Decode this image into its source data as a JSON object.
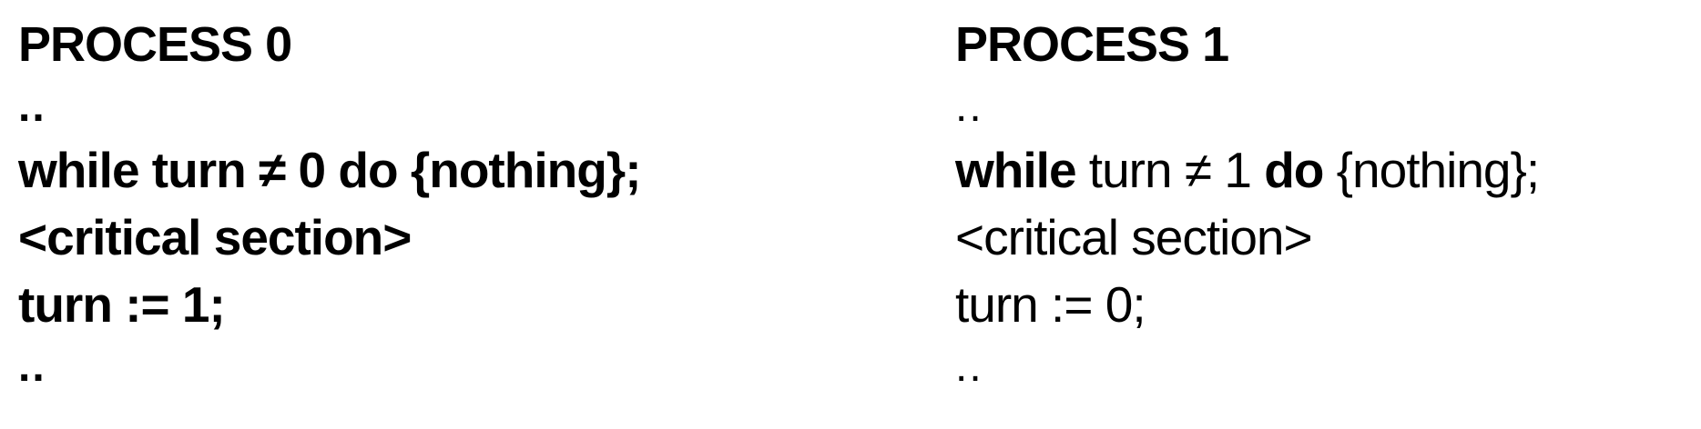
{
  "process0": {
    "title": "PROCESS 0",
    "dots_top": "..",
    "while_kw": "while",
    "while_cond": " turn ≠ 0 ",
    "do_kw": "do",
    "while_body": " {nothing};",
    "critical": "<critical section>",
    "assign": "turn := 1;",
    "dots_bottom": ".."
  },
  "process1": {
    "title": "PROCESS 1",
    "dots_top": "..",
    "while_kw": "while",
    "while_cond": " turn ≠ 1 ",
    "do_kw": "do",
    "while_body": " {nothing};",
    "critical": "<critical section>",
    "assign": "turn := 0;",
    "dots_bottom": ".."
  }
}
